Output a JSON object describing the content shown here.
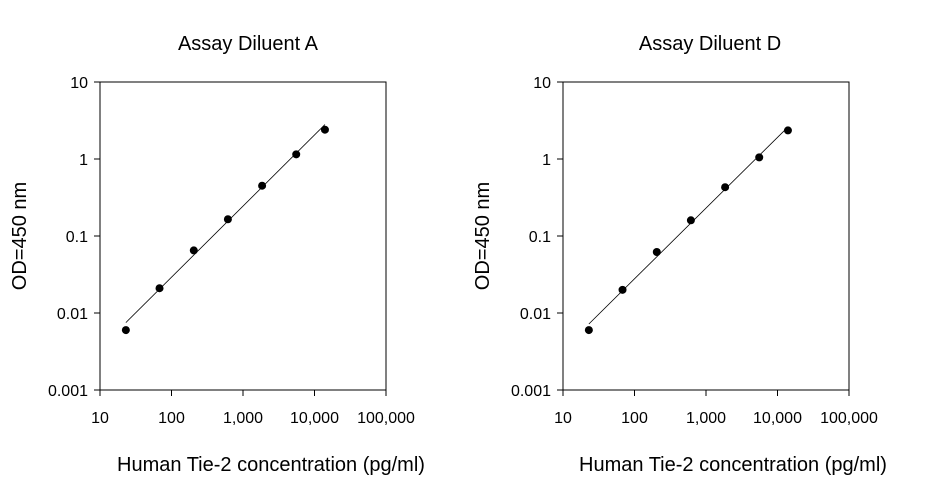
{
  "chart_data": [
    {
      "type": "scatter",
      "title": "Assay Diluent A",
      "xlabel": "Human Tie-2 concentration (pg/ml)",
      "ylabel": "OD=450 nm",
      "xscale": "log",
      "yscale": "log",
      "xlim": [
        10,
        100000
      ],
      "ylim": [
        0.001,
        10
      ],
      "xticks": [
        10,
        100,
        1000,
        10000,
        100000
      ],
      "xtick_labels": [
        "10",
        "100",
        "1,000",
        "10,000",
        "100,000"
      ],
      "yticks": [
        0.001,
        0.01,
        0.1,
        1,
        10
      ],
      "ytick_labels": [
        "0.001",
        "0.01",
        "0.1",
        "1",
        "10"
      ],
      "grid": false,
      "series": [
        {
          "x": [
            23,
            68,
            205,
            615,
            1850,
            5550,
            14000
          ],
          "y": [
            0.006,
            0.021,
            0.065,
            0.165,
            0.45,
            1.15,
            2.4
          ]
        }
      ],
      "fit_line": {
        "x": [
          23,
          14000
        ],
        "y": [
          0.0075,
          2.8
        ]
      }
    },
    {
      "type": "scatter",
      "title": "Assay Diluent D",
      "xlabel": "Human Tie-2 concentration (pg/ml)",
      "ylabel": "OD=450 nm",
      "xscale": "log",
      "yscale": "log",
      "xlim": [
        10,
        100000
      ],
      "ylim": [
        0.001,
        10
      ],
      "xticks": [
        10,
        100,
        1000,
        10000,
        100000
      ],
      "xtick_labels": [
        "10",
        "100",
        "1,000",
        "10,000",
        "100,000"
      ],
      "yticks": [
        0.001,
        0.01,
        0.1,
        1,
        10
      ],
      "ytick_labels": [
        "0.001",
        "0.01",
        "0.1",
        "1",
        "10"
      ],
      "grid": false,
      "series": [
        {
          "x": [
            23,
            68,
            205,
            615,
            1850,
            5550,
            14000
          ],
          "y": [
            0.006,
            0.02,
            0.062,
            0.16,
            0.43,
            1.05,
            2.35
          ]
        }
      ],
      "fit_line": {
        "x": [
          23,
          14000
        ],
        "y": [
          0.0072,
          2.6
        ]
      }
    }
  ]
}
